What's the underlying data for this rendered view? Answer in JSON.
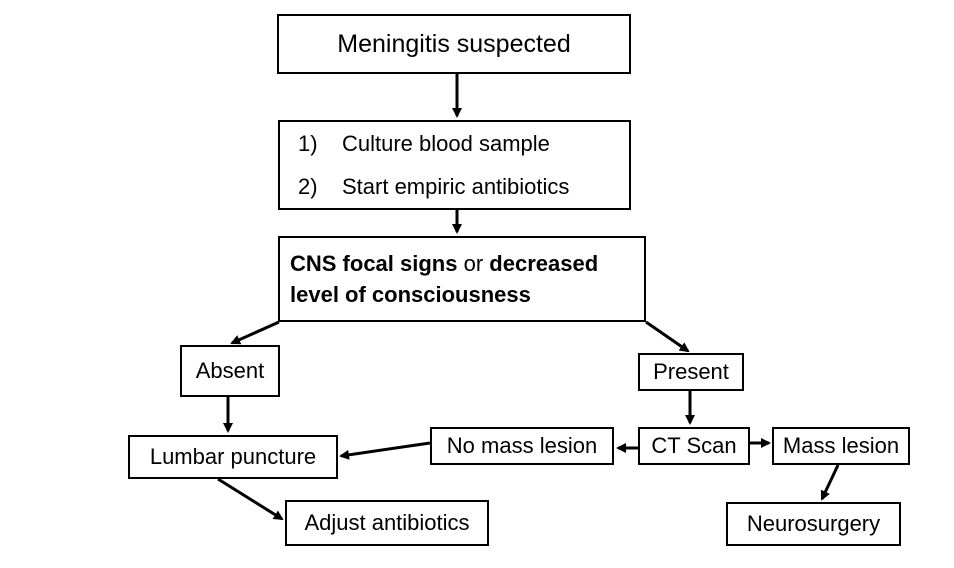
{
  "diagram": {
    "title": "Meningitis suspected",
    "steps": [
      {
        "number": "1)",
        "text": "Culture blood sample"
      },
      {
        "number": "2)",
        "text": "Start empiric antibiotics"
      }
    ],
    "condition": {
      "part1": "CNS focal signs",
      "connector": " or ",
      "part2": "decreased level of consciousness"
    },
    "absent": "Absent",
    "present": "Present",
    "lumbar_puncture": "Lumbar puncture",
    "no_mass_lesion": "No mass lesion",
    "ct_scan": "CT Scan",
    "mass_lesion": "Mass lesion",
    "adjust_antibiotics": "Adjust antibiotics",
    "neurosurgery": "Neurosurgery"
  },
  "colors": {
    "line": "#000000",
    "box_border": "#000000",
    "background": "#ffffff"
  }
}
